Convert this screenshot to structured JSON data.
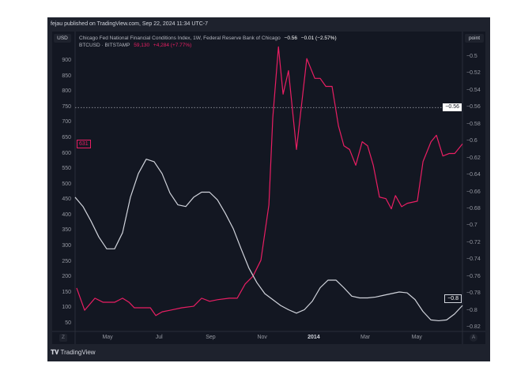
{
  "header": {
    "published": "fejau published on TradingView.com, Sep 22, 2024 11:34 UTC-7"
  },
  "buttons": {
    "currency": "USD",
    "scale_mode": "point",
    "auto": "A",
    "zoom": "Z"
  },
  "legend": {
    "series1_name": "Chicago Fed National Financial Conditions Index, 1W, Federal Reserve Bank of Chicago",
    "series1_value": "−0.56",
    "series1_change": "−0.01 (−2.57%)",
    "series2_name": "BTCUSD · BITSTAMP",
    "series2_value": "59,130",
    "series2_change": "+4,284 (+7.77%)"
  },
  "footer": {
    "brand": "TradingView",
    "logo": "17"
  },
  "chart_data": {
    "type": "line",
    "x_unit": "months since Jan 2013",
    "x_range": [
      2.74,
      17.77
    ],
    "x_ticks": [
      {
        "x": 4,
        "label": "May"
      },
      {
        "x": 6,
        "label": "Jul"
      },
      {
        "x": 8,
        "label": "Sep"
      },
      {
        "x": 10,
        "label": "Nov"
      },
      {
        "x": 12,
        "label": "2014"
      },
      {
        "x": 14,
        "label": "Mar"
      },
      {
        "x": 16,
        "label": "May"
      }
    ],
    "left_axis": {
      "label": "USD",
      "range": [
        50,
        900
      ],
      "ticks": [
        50,
        100,
        150,
        200,
        250,
        300,
        350,
        400,
        450,
        500,
        550,
        600,
        650,
        700,
        750,
        800,
        850,
        900
      ]
    },
    "right_axis": {
      "label": "point",
      "range": [
        -0.82,
        -0.5
      ],
      "ticks": [
        "-0.5",
        "-0.52",
        "-0.54",
        "-0.56",
        "-0.58",
        "-0.6",
        "-0.62",
        "-0.64",
        "-0.66",
        "-0.68",
        "-0.7",
        "-0.72",
        "-0.74",
        "-0.76",
        "-0.78",
        "-0.8",
        "-0.82"
      ]
    },
    "current_line": {
      "value": -0.56,
      "label": "−0.56"
    },
    "last_labels": {
      "btc": "631",
      "nfci": "−0.8"
    },
    "series": [
      {
        "name": "BTCUSD",
        "axis": "left",
        "color": "#e91e63",
        "x": [
          2.8,
          3.11,
          3.51,
          3.82,
          4.28,
          4.58,
          4.83,
          5.04,
          5.35,
          5.66,
          5.87,
          6.12,
          6.42,
          6.88,
          7.34,
          7.65,
          7.96,
          8.26,
          8.72,
          9.03,
          9.34,
          9.64,
          9.95,
          10.26,
          10.41,
          10.63,
          10.81,
          11.02,
          11.33,
          11.73,
          12.04,
          12.25,
          12.47,
          12.71,
          12.96,
          13.17,
          13.39,
          13.63,
          13.88,
          14.09,
          14.31,
          14.55,
          14.8,
          15.01,
          15.17,
          15.41,
          15.63,
          16.02,
          16.24,
          16.55,
          16.76,
          17.01,
          17.25,
          17.47,
          17.77
        ],
        "values": [
          165,
          93,
          132,
          119,
          119,
          132,
          119,
          101,
          101,
          101,
          76,
          88,
          93,
          101,
          106,
          132,
          122,
          127,
          132,
          132,
          178,
          203,
          255,
          434,
          715,
          945,
          792,
          868,
          613,
          907,
          843,
          843,
          817,
          817,
          689,
          625,
          613,
          562,
          638,
          625,
          562,
          459,
          454,
          421,
          464,
          428,
          439,
          446,
          574,
          638,
          659,
          592,
          600,
          600,
          631
        ]
      },
      {
        "name": "Chicago Fed NFCI",
        "axis": "right",
        "color": "#d1d4dc",
        "x_start": 2.74,
        "x_end": 17.77,
        "values": [
          -0.666,
          -0.677,
          -0.694,
          -0.713,
          -0.727,
          -0.727,
          -0.708,
          -0.666,
          -0.638,
          -0.621,
          -0.624,
          -0.638,
          -0.661,
          -0.675,
          -0.677,
          -0.666,
          -0.66,
          -0.66,
          -0.669,
          -0.685,
          -0.703,
          -0.727,
          -0.75,
          -0.767,
          -0.78,
          -0.787,
          -0.794,
          -0.799,
          -0.803,
          -0.799,
          -0.789,
          -0.773,
          -0.764,
          -0.764,
          -0.773,
          -0.783,
          -0.785,
          -0.785,
          -0.784,
          -0.782,
          -0.78,
          -0.778,
          -0.779,
          -0.787,
          -0.801,
          -0.811,
          -0.812,
          -0.811,
          -0.804,
          -0.794
        ]
      }
    ]
  }
}
